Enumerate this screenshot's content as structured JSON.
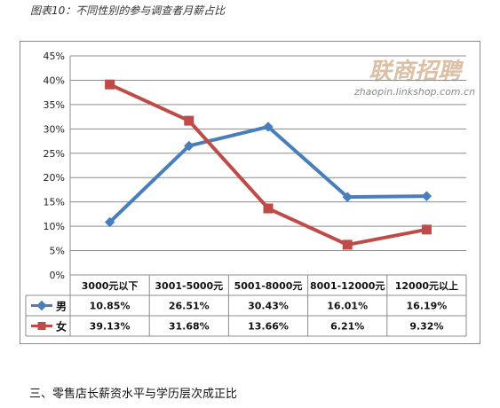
{
  "caption": "图表10：不同性别的参与调查者月薪占比",
  "watermark": {
    "brand": "联商招聘",
    "url": "zhaopin.linkshop.com.cn",
    "color": "#c08a5a"
  },
  "section_heading": "三、零售店长薪资水平与学历层次成正比",
  "chart_data": {
    "type": "line",
    "categories": [
      "3000元以下",
      "3001-5000元",
      "5001-8000元",
      "8001-12000元",
      "12000元以上"
    ],
    "y_ticks": [
      "0%",
      "5%",
      "10%",
      "15%",
      "20%",
      "25%",
      "30%",
      "35%",
      "40%",
      "45%"
    ],
    "ylim": [
      0,
      45
    ],
    "y_unit": "%",
    "grid": true,
    "legend": "data-table",
    "series": [
      {
        "name": "男",
        "values": [
          10.85,
          26.51,
          30.43,
          16.01,
          16.19
        ],
        "labels": [
          "10.85%",
          "26.51%",
          "30.43%",
          "16.01%",
          "16.19%"
        ],
        "color": "#4a7ebb",
        "marker": "diamond"
      },
      {
        "name": "女",
        "values": [
          39.13,
          31.68,
          13.66,
          6.21,
          9.32
        ],
        "labels": [
          "39.13%",
          "31.68%",
          "13.66%",
          "6.21%",
          "9.32%"
        ],
        "color": "#be4b48",
        "marker": "square"
      }
    ]
  }
}
